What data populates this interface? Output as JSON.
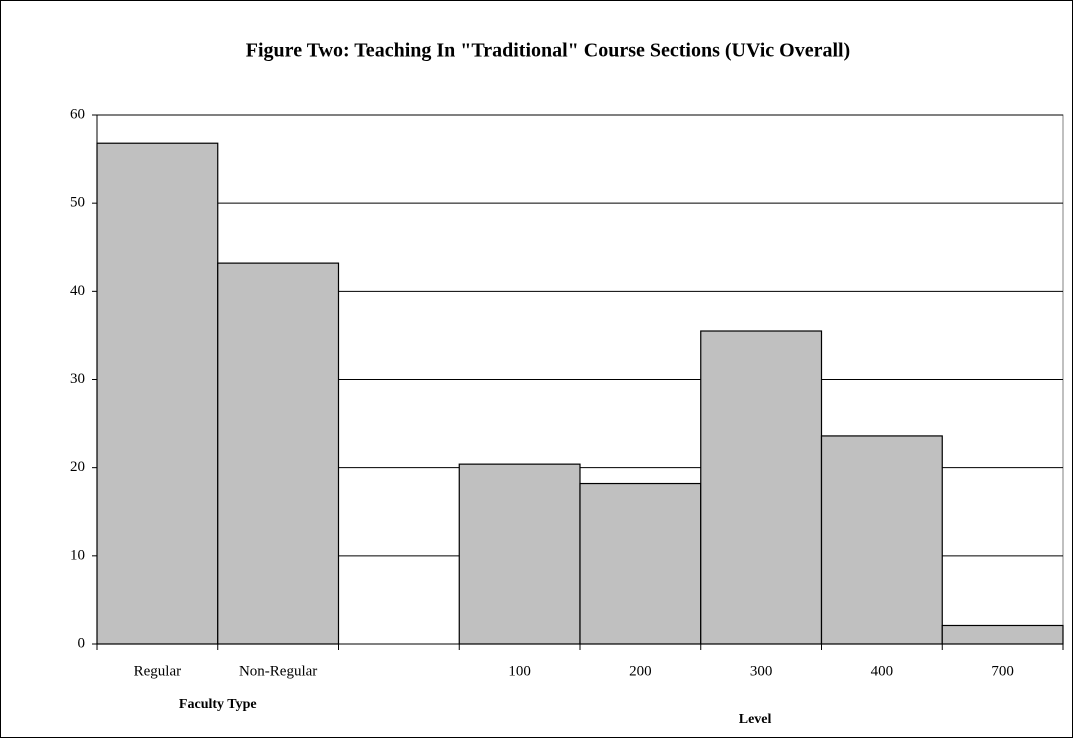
{
  "chart_data": {
    "type": "bar",
    "title": "Figure Two: Teaching In \"Traditional\" Course Sections (UVic Overall)",
    "categories": [
      "Regular",
      "Non-Regular",
      null,
      "100",
      "200",
      "300",
      "400",
      "700"
    ],
    "values": [
      56.8,
      43.2,
      null,
      20.4,
      18.2,
      35.5,
      23.6,
      2.1
    ],
    "color": "#c0c0c0",
    "group_labels": [
      "Faculty Type",
      "Level"
    ],
    "ylim": [
      0,
      60
    ],
    "yticks": [
      0,
      10,
      20,
      30,
      40,
      50,
      60
    ],
    "grid": true
  }
}
